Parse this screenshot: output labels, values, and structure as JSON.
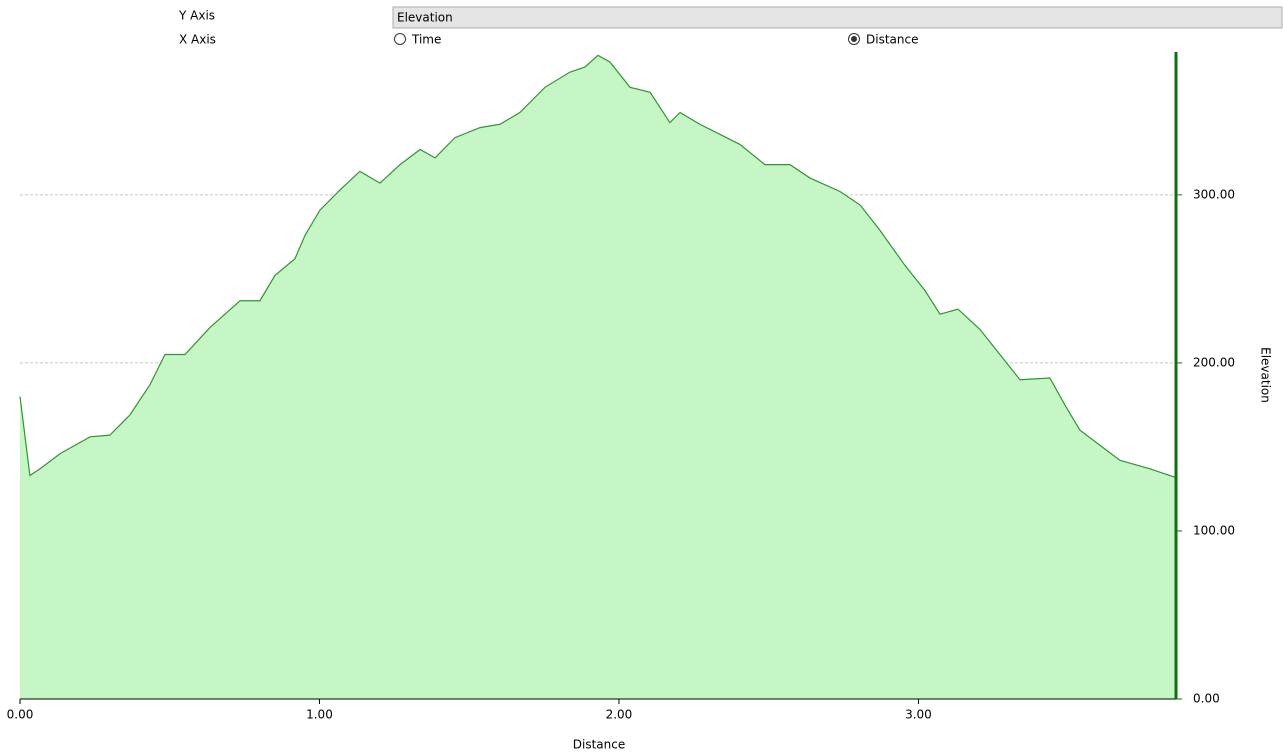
{
  "controls": {
    "y_axis_label": "Y Axis",
    "y_axis_value": "Elevation",
    "x_axis_label": "X Axis",
    "x_axis_options": [
      {
        "label": "Time",
        "selected": false
      },
      {
        "label": "Distance",
        "selected": true
      }
    ]
  },
  "chart_data": {
    "type": "area",
    "x_label": "Distance",
    "y_label": "Elevation",
    "color": "#2a9a2a",
    "fill": "#c6f5c6",
    "axis_color": "#107010",
    "y_axis_side": "right",
    "grid": true,
    "xlim": [
      0,
      3.86
    ],
    "ylim": [
      0,
      385
    ],
    "xticks": [
      {
        "value": 0,
        "label": "0.00"
      },
      {
        "value": 1,
        "label": "1.00"
      },
      {
        "value": 2,
        "label": "2.00"
      },
      {
        "value": 3,
        "label": "3.00"
      }
    ],
    "yticks": [
      {
        "value": 0,
        "label": "0.00"
      },
      {
        "value": 100,
        "label": "100.00"
      },
      {
        "value": 200,
        "label": "200.00"
      },
      {
        "value": 300,
        "label": "300.00"
      }
    ],
    "x": [
      0,
      0.033,
      0.067,
      0.134,
      0.234,
      0.3,
      0.367,
      0.434,
      0.484,
      0.551,
      0.634,
      0.735,
      0.801,
      0.851,
      0.918,
      0.952,
      1.002,
      1.069,
      1.135,
      1.202,
      1.269,
      1.336,
      1.386,
      1.452,
      1.536,
      1.603,
      1.669,
      1.753,
      1.836,
      1.886,
      1.93,
      1.97,
      2.037,
      2.104,
      2.17,
      2.204,
      2.27,
      2.337,
      2.404,
      2.487,
      2.571,
      2.638,
      2.738,
      2.805,
      2.871,
      2.955,
      3.022,
      3.072,
      3.132,
      3.205,
      3.272,
      3.339,
      3.439,
      3.489,
      3.539,
      3.606,
      3.673,
      3.773,
      3.856
    ],
    "values": [
      180,
      133,
      137,
      146,
      156,
      157,
      169,
      187,
      205,
      205,
      221,
      237,
      237,
      252,
      262,
      276,
      291,
      303,
      314,
      307,
      318,
      327,
      322,
      334,
      340,
      342,
      349,
      364,
      373,
      376,
      383,
      379,
      364,
      361,
      343,
      349,
      342,
      336,
      330,
      318,
      318,
      310,
      302,
      294,
      279,
      258,
      243,
      229,
      232,
      220,
      205,
      190,
      191,
      175,
      160,
      151,
      142,
      137,
      132
    ]
  }
}
